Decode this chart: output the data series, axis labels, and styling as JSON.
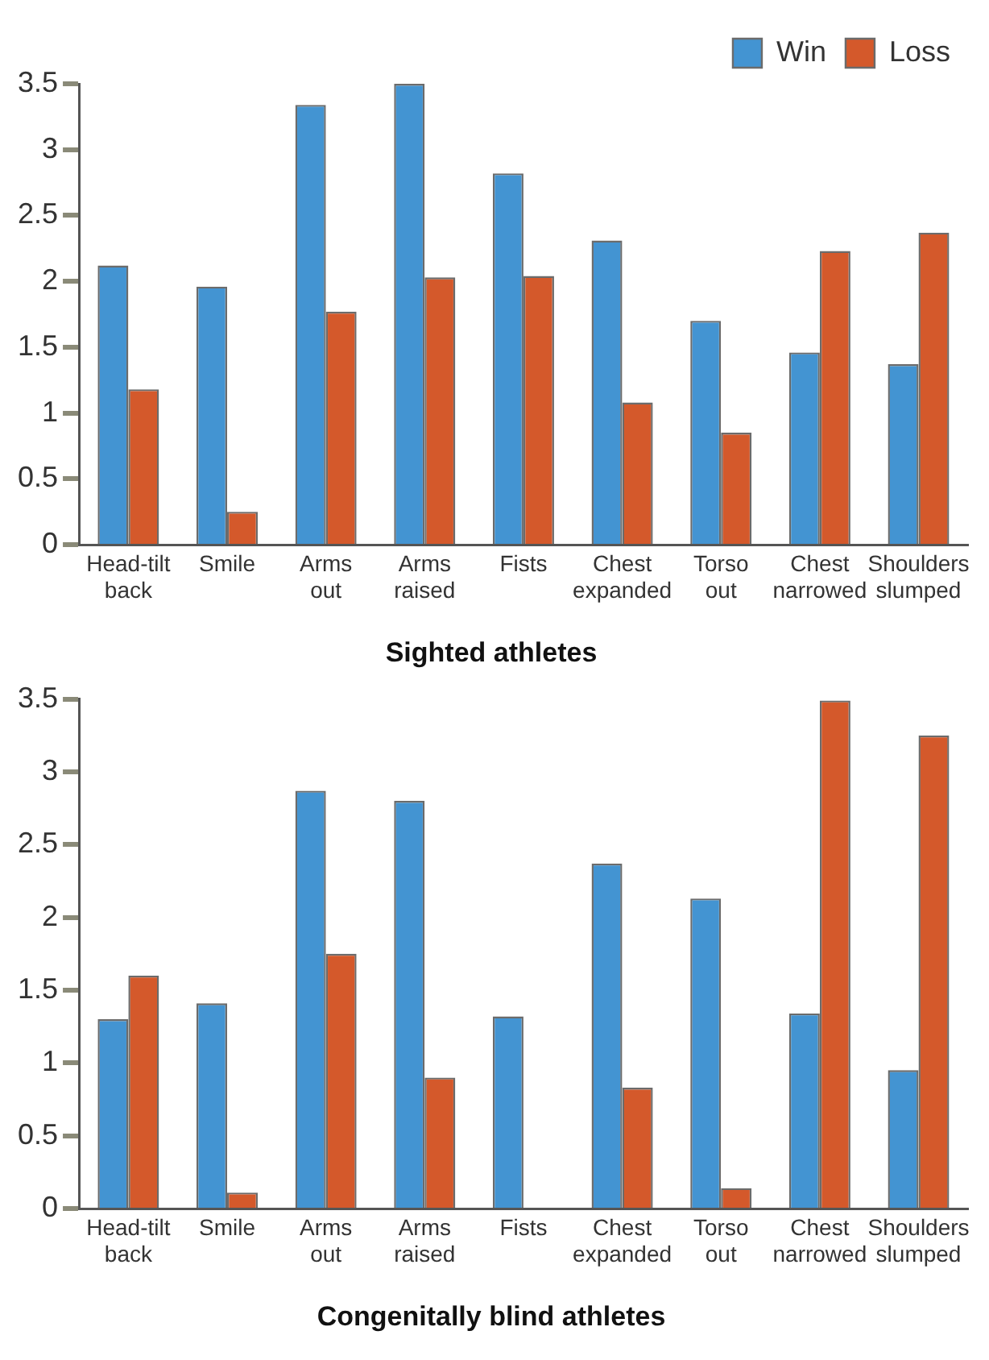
{
  "chart_data": [
    {
      "type": "bar",
      "title": "Sighted athletes",
      "categories": [
        "Head-tilt back",
        "Smile",
        "Arms out",
        "Arms raised",
        "Fists",
        "Chest expanded",
        "Torso out",
        "Chest narrowed",
        "Shoulders slumped"
      ],
      "series": [
        {
          "name": "Win",
          "color": "#4394d2",
          "values": [
            2.12,
            1.96,
            3.34,
            3.5,
            2.82,
            2.31,
            1.7,
            1.46,
            1.37
          ]
        },
        {
          "name": "Loss",
          "color": "#d4592b",
          "values": [
            1.18,
            0.25,
            1.77,
            2.03,
            2.04,
            1.08,
            0.85,
            2.23,
            2.37
          ]
        }
      ],
      "ylim": [
        0,
        3.5
      ],
      "yticks": [
        0,
        0.5,
        1,
        1.5,
        2,
        2.5,
        3,
        3.5
      ],
      "grid": false,
      "legend": "top right"
    },
    {
      "type": "bar",
      "title": "Congenitally blind athletes",
      "categories": [
        "Head-tilt back",
        "Smile",
        "Arms out",
        "Arms raised",
        "Fists",
        "Chest expanded",
        "Torso out",
        "Chest narrowed",
        "Shoulders slumped"
      ],
      "series": [
        {
          "color": "#4394d2",
          "values": [
            1.3,
            1.41,
            2.87,
            2.8,
            1.32,
            2.37,
            2.13,
            1.34,
            0.95
          ]
        },
        {
          "color": "#d4592b",
          "values": [
            1.6,
            0.11,
            1.75,
            0.9,
            0,
            0.83,
            0.14,
            3.49,
            3.25
          ]
        }
      ],
      "ylim": [
        0,
        3.5
      ],
      "yticks": [
        0,
        0.5,
        1,
        1.5,
        2,
        2.5,
        3,
        3.5
      ],
      "grid": false,
      "legend": false
    }
  ]
}
